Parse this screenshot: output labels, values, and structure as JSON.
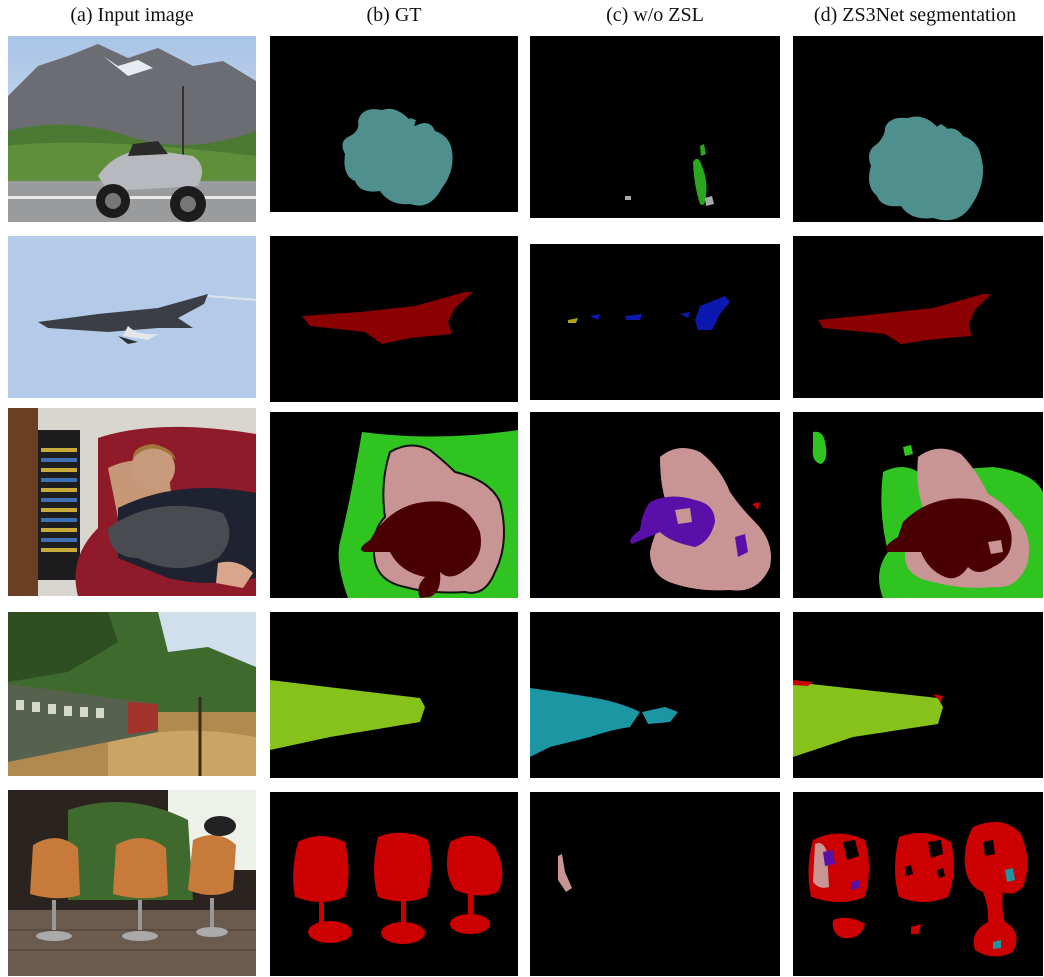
{
  "headers": [
    "(a) Input image",
    "(b) GT",
    "(c) w/o ZSL",
    "(d) ZS3Net segmentation"
  ],
  "colors": {
    "motorbike": "#4f8f8d",
    "aeroplane": "#8b0000",
    "person": "#c89494",
    "sofa": "#2fc41f",
    "cat": "#4a0000",
    "train": "#86c21a",
    "chair": "#cc0000",
    "predicted_bus": "#1d96a3",
    "predicted_bird": "#0c18b0",
    "predicted_dog": "#5a0fa8",
    "predicted_plant": "#2aa61f",
    "background": "#000000"
  },
  "rows": [
    {
      "scene": "motorbike-mountain"
    },
    {
      "scene": "jet-sky"
    },
    {
      "scene": "person-cat-sofa"
    },
    {
      "scene": "train-forest"
    },
    {
      "scene": "chairs-patio"
    }
  ]
}
